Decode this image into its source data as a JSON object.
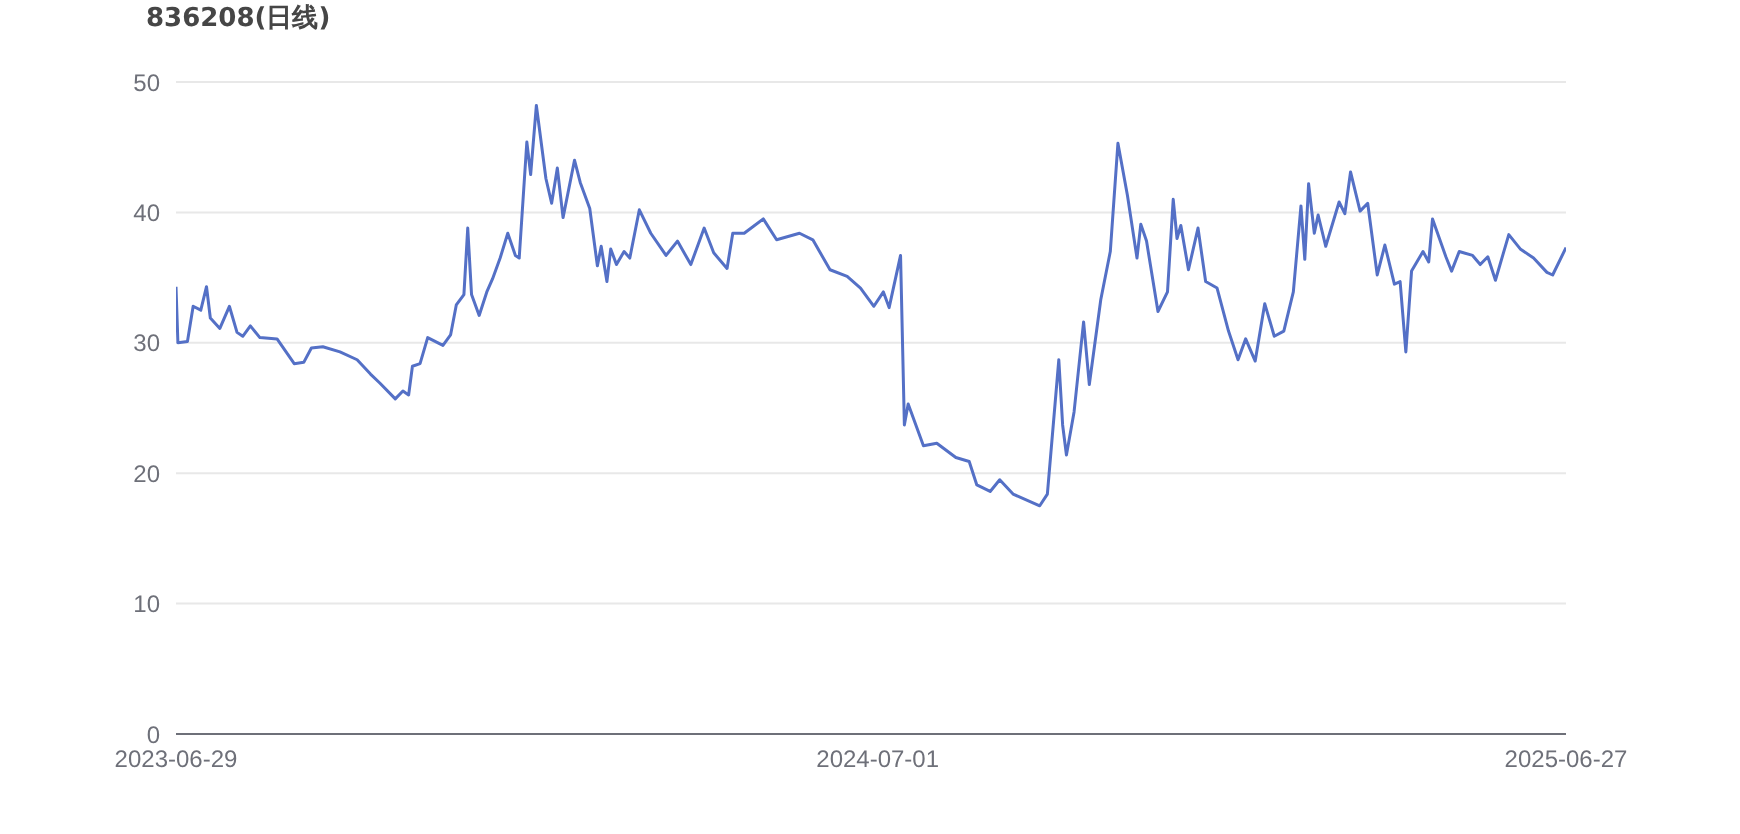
{
  "chart_data": {
    "type": "line",
    "title": "836208(日线)",
    "x": [
      "2023-06-29",
      "2023-06-30",
      "2023-07-05",
      "2023-07-08",
      "2023-07-12",
      "2023-07-15",
      "2023-07-17",
      "2023-07-22",
      "2023-07-27",
      "2023-07-31",
      "2023-08-03",
      "2023-08-07",
      "2023-08-12",
      "2023-08-21",
      "2023-08-30",
      "2023-09-04",
      "2023-09-08",
      "2023-09-14",
      "2023-09-23",
      "2023-10-02",
      "2023-10-09",
      "2023-10-14",
      "2023-10-22",
      "2023-10-26",
      "2023-10-29",
      "2023-10-31",
      "2023-11-04",
      "2023-11-08",
      "2023-11-16",
      "2023-11-20",
      "2023-11-23",
      "2023-11-27",
      "2023-11-29",
      "2023-12-01",
      "2023-12-05",
      "2023-12-09",
      "2023-12-12",
      "2023-12-16",
      "2023-12-20",
      "2023-12-24",
      "2023-12-26",
      "2023-12-30",
      "2024-01-01",
      "2024-01-04",
      "2024-01-09",
      "2024-01-12",
      "2024-01-15",
      "2024-01-18",
      "2024-01-24",
      "2024-01-27",
      "2024-02-01",
      "2024-02-05",
      "2024-02-07",
      "2024-02-10",
      "2024-02-12",
      "2024-02-15",
      "2024-02-19",
      "2024-02-22",
      "2024-02-27",
      "2024-03-04",
      "2024-03-12",
      "2024-03-18",
      "2024-03-25",
      "2024-04-01",
      "2024-04-06",
      "2024-04-13",
      "2024-04-16",
      "2024-04-22",
      "2024-05-02",
      "2024-05-09",
      "2024-05-21",
      "2024-05-28",
      "2024-06-06",
      "2024-06-15",
      "2024-06-22",
      "2024-06-29",
      "2024-07-04",
      "2024-07-07",
      "2024-07-13",
      "2024-07-15",
      "2024-07-17",
      "2024-07-25",
      "2024-08-01",
      "2024-08-11",
      "2024-08-18",
      "2024-08-22",
      "2024-08-29",
      "2024-09-03",
      "2024-09-10",
      "2024-09-24",
      "2024-09-28",
      "2024-10-04",
      "2024-10-06",
      "2024-10-08",
      "2024-10-12",
      "2024-10-17",
      "2024-10-20",
      "2024-10-26",
      "2024-10-31",
      "2024-11-04",
      "2024-11-09",
      "2024-11-14",
      "2024-11-16",
      "2024-11-19",
      "2024-11-25",
      "2024-11-30",
      "2024-12-03",
      "2024-12-05",
      "2024-12-07",
      "2024-12-11",
      "2024-12-16",
      "2024-12-20",
      "2024-12-26",
      "2025-01-01",
      "2025-01-06",
      "2025-01-10",
      "2025-01-15",
      "2025-01-20",
      "2025-01-25",
      "2025-01-30",
      "2025-02-04",
      "2025-02-08",
      "2025-02-10",
      "2025-02-12",
      "2025-02-15",
      "2025-02-17",
      "2025-02-21",
      "2025-02-28",
      "2025-03-03",
      "2025-03-06",
      "2025-03-11",
      "2025-03-15",
      "2025-03-20",
      "2025-03-24",
      "2025-03-29",
      "2025-04-01",
      "2025-04-04",
      "2025-04-07",
      "2025-04-13",
      "2025-04-16",
      "2025-04-18",
      "2025-04-25",
      "2025-04-28",
      "2025-05-02",
      "2025-05-09",
      "2025-05-13",
      "2025-05-17",
      "2025-05-21",
      "2025-05-28",
      "2025-06-03",
      "2025-06-10",
      "2025-06-17",
      "2025-06-20",
      "2025-06-27"
    ],
    "series": [
      {
        "color": "#5470c6",
        "values": [
          34.3,
          30.0,
          30.1,
          32.8,
          32.5,
          34.3,
          31.9,
          31.1,
          32.8,
          30.8,
          30.5,
          31.3,
          30.4,
          30.3,
          28.4,
          28.5,
          29.6,
          29.7,
          29.3,
          28.7,
          27.6,
          26.9,
          25.7,
          26.3,
          26.0,
          28.2,
          28.4,
          30.4,
          29.8,
          30.6,
          32.9,
          33.7,
          38.8,
          33.7,
          32.1,
          33.9,
          34.9,
          36.5,
          38.4,
          36.7,
          36.5,
          45.4,
          42.9,
          48.2,
          42.6,
          40.7,
          43.4,
          39.6,
          44.0,
          42.3,
          40.3,
          35.9,
          37.4,
          34.7,
          37.2,
          36.0,
          37.0,
          36.5,
          40.2,
          38.4,
          36.7,
          37.8,
          36.0,
          38.8,
          36.9,
          35.7,
          38.4,
          38.4,
          39.5,
          37.9,
          38.4,
          37.9,
          35.6,
          35.1,
          34.2,
          32.8,
          33.9,
          32.7,
          36.7,
          23.7,
          25.3,
          22.1,
          22.3,
          21.2,
          20.9,
          19.1,
          18.6,
          19.5,
          18.4,
          17.5,
          18.4,
          28.7,
          23.7,
          21.4,
          24.7,
          31.6,
          26.8,
          33.3,
          37.0,
          45.3,
          41.3,
          36.5,
          39.1,
          37.8,
          32.4,
          33.9,
          41.0,
          38.0,
          39.0,
          35.6,
          38.8,
          34.7,
          34.2,
          30.9,
          28.7,
          30.3,
          28.6,
          33.0,
          30.5,
          30.9,
          33.9,
          40.5,
          36.4,
          42.2,
          38.4,
          39.8,
          37.4,
          40.8,
          39.9,
          43.1,
          40.1,
          40.7,
          35.2,
          37.5,
          34.5,
          34.7,
          29.3,
          35.5,
          37.0,
          36.2,
          39.5,
          36.6,
          35.5,
          37.0,
          36.7,
          36.0,
          36.6,
          34.8,
          38.3,
          37.2,
          36.5,
          35.4,
          35.2,
          37.3
        ]
      }
    ],
    "xlim": [
      "2023-06-29",
      "2025-06-27"
    ],
    "xticks": [
      "2023-06-29",
      "2024-07-01",
      "2025-06-27"
    ],
    "ylim": [
      0,
      50
    ],
    "yticks": [
      0,
      10,
      20,
      30,
      40,
      50
    ],
    "grid": "y",
    "legend": false,
    "marker": "none",
    "line_style": "solid"
  }
}
